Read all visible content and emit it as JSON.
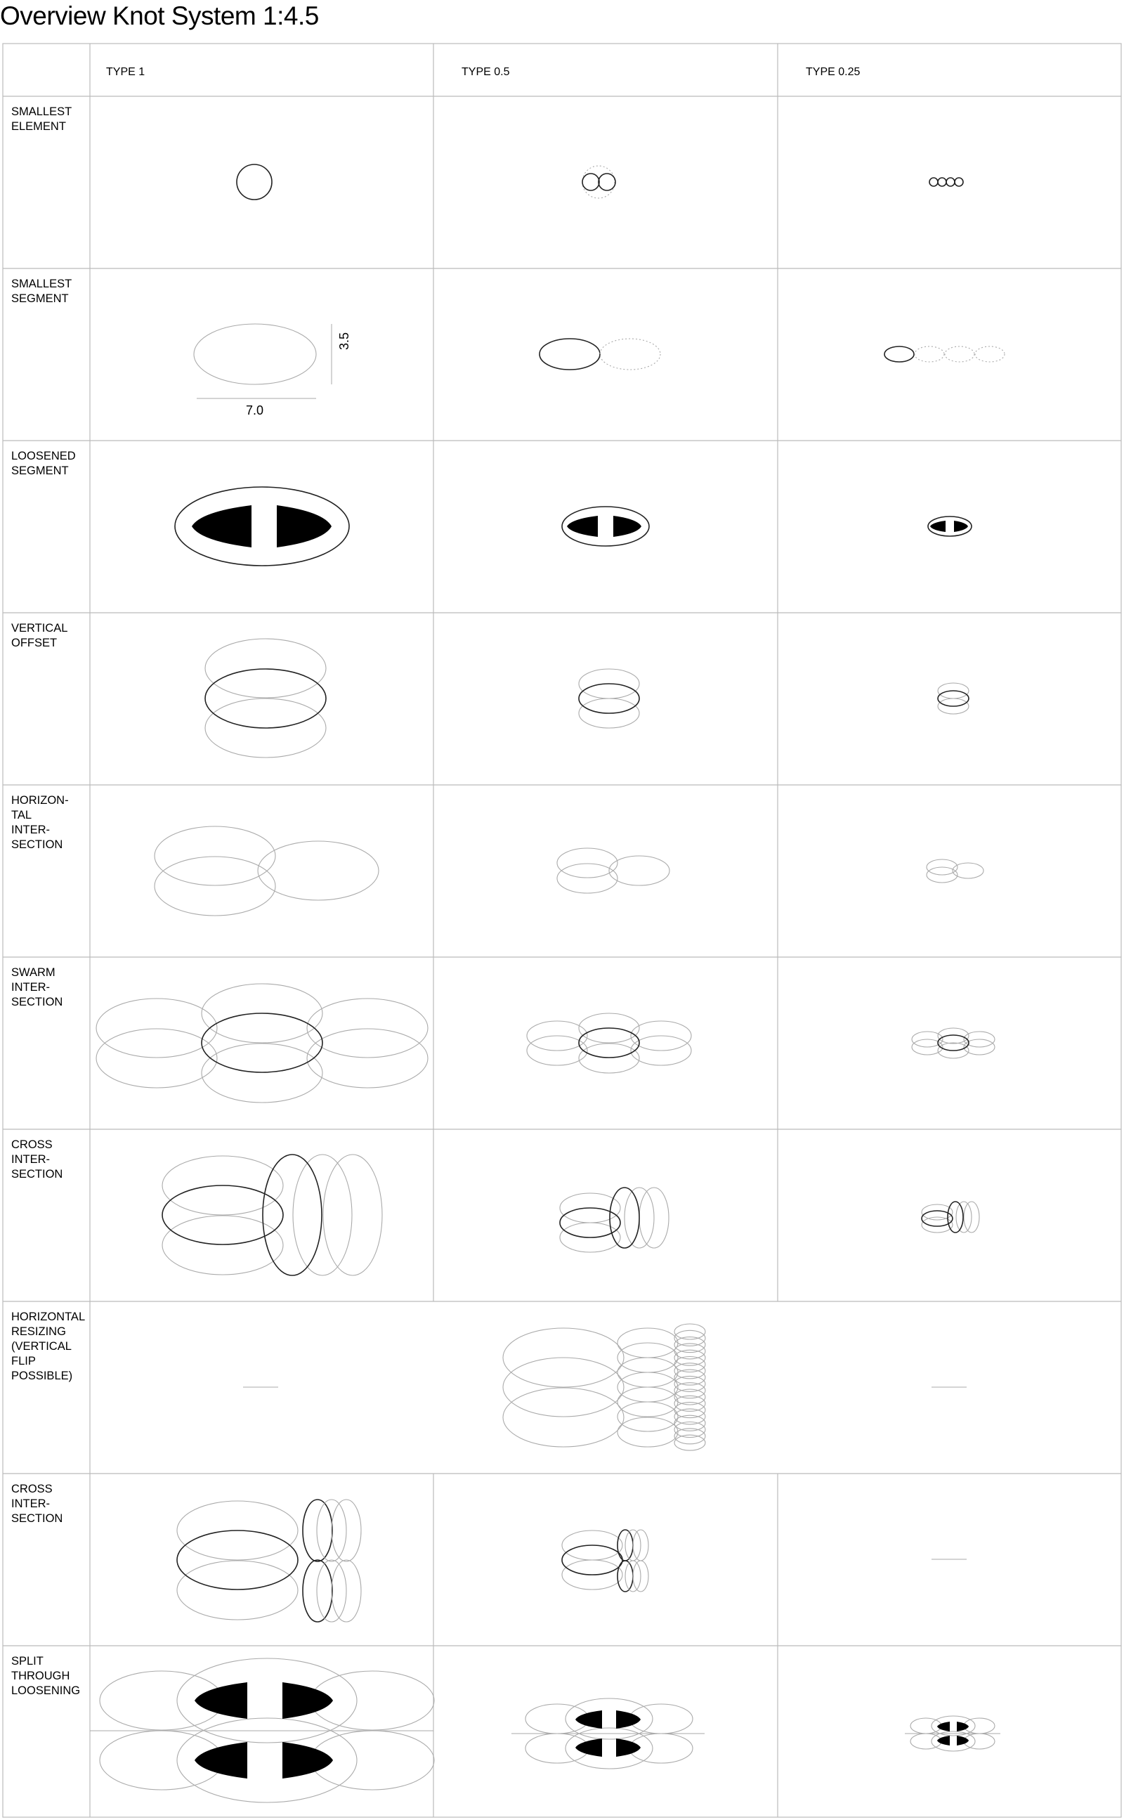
{
  "title": "Overview Knot System 1:4.5",
  "columns": [
    "TYPE 1",
    "TYPE 0.5",
    "TYPE 0.25"
  ],
  "rows": [
    {
      "label": "SMALLEST\nELEMENT"
    },
    {
      "label": "SMALLEST\nSEGMENT"
    },
    {
      "label": "LOOSENED\nSEGMENT"
    },
    {
      "label": "VERTICAL\nOFFSET"
    },
    {
      "label": "HORIZON-\nTAL\nINTER-\nSECTION"
    },
    {
      "label": "SWARM\nINTER-\nSECTION"
    },
    {
      "label": "CROSS\nINTER-\nSECTION"
    },
    {
      "label": "HORIZONTAL\nRESIZING\n(VERTICAL\nFLIP\nPOSSIBLE)"
    },
    {
      "label": "CROSS\nINTER-\nSECTION"
    },
    {
      "label": "SPLIT\nTHROUGH\nLOOSENING"
    }
  ],
  "dimensions": {
    "width": "7.0",
    "height": "3.5"
  },
  "colors": {
    "line_dark": "#222222",
    "line_light": "#aaaaaa",
    "grid": "#bbbbbb",
    "fill": "#000000"
  }
}
